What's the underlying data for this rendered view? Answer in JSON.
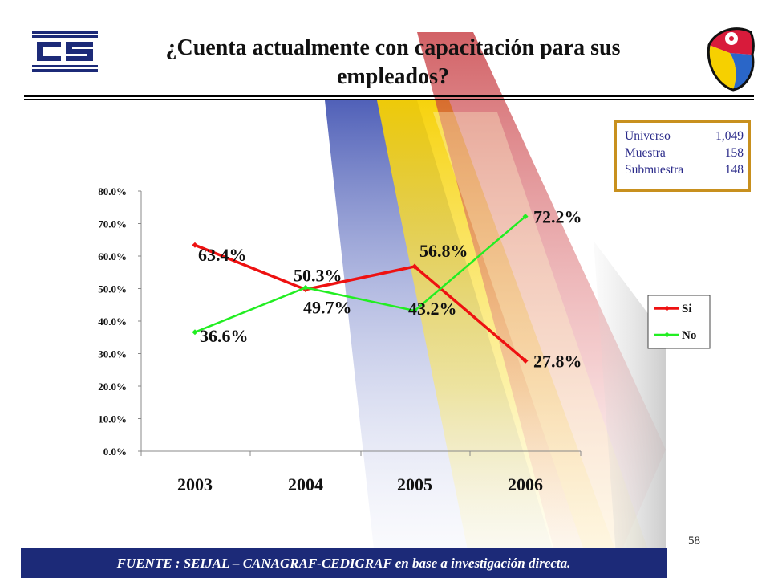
{
  "title": "¿Cuenta actualmente con capacitación para sus empleados?",
  "stats": [
    {
      "label": "Universo",
      "value": "1,049"
    },
    {
      "label": "Muestra",
      "value": "158"
    },
    {
      "label": "Submuestra",
      "value": "148"
    }
  ],
  "page_number": "58",
  "footer": "FUENTE : SEIJAL – CANAGRAF-CEDIGRAF en base a investigación directa.",
  "colors": {
    "si": "#ee1111",
    "no": "#22ee22",
    "footer": "#1c2a78",
    "stats_border": "#c8901e"
  },
  "chart_data": {
    "type": "line",
    "categories": [
      "2003",
      "2004",
      "2005",
      "2006"
    ],
    "y_ticks": [
      "0.0%",
      "10.0%",
      "20.0%",
      "30.0%",
      "40.0%",
      "50.0%",
      "60.0%",
      "70.0%",
      "80.0%"
    ],
    "ylim": [
      0,
      80
    ],
    "grid": false,
    "legend_position": "right",
    "series": [
      {
        "name": "Si",
        "color": "#ee1111",
        "values": [
          63.4,
          49.7,
          56.8,
          27.8
        ],
        "labels": [
          "63.4%",
          "49.7%",
          "56.8%",
          "27.8%"
        ]
      },
      {
        "name": "No",
        "color": "#22ee22",
        "values": [
          36.6,
          50.3,
          43.2,
          72.2
        ],
        "labels": [
          "36.6%",
          "50.3%",
          "43.2%",
          "72.2%"
        ]
      }
    ]
  }
}
